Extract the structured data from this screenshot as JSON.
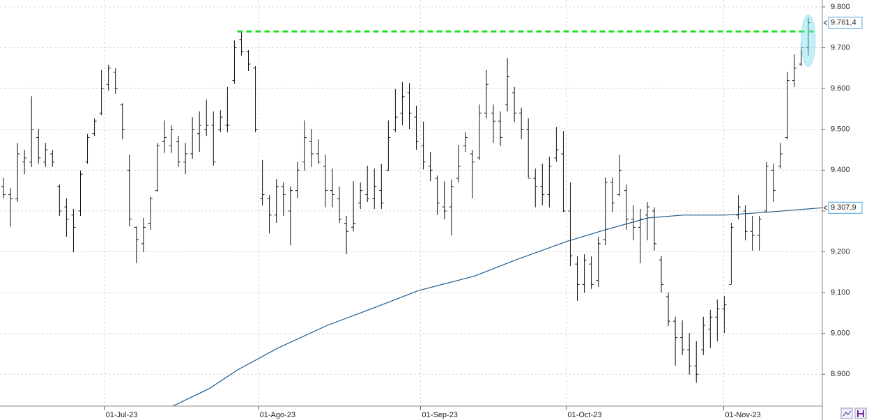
{
  "chart_data": {
    "type": "ohlc",
    "open": [
      9360,
      9340,
      9330,
      9420,
      9420,
      9480,
      9420,
      9440,
      9360,
      9310,
      9290,
      9300,
      9420,
      9490,
      9540,
      9610,
      9640,
      9560,
      9400,
      9260,
      9220,
      9270,
      9350,
      9470,
      9460,
      9470,
      9420,
      9440,
      9490,
      9500,
      9510,
      9500,
      9510,
      9620,
      9720,
      9690,
      9650,
      9330,
      9330,
      9290,
      9360,
      9300,
      9350,
      9420,
      9470,
      9440,
      9410,
      9350,
      9330,
      9270,
      9260,
      9320,
      9340,
      9330,
      9350,
      9400,
      9500,
      9540,
      9590,
      9530,
      9460,
      9410,
      9380,
      9310,
      9310,
      9380,
      9460,
      9440,
      9430,
      9540,
      9540,
      9520,
      9560,
      9590,
      9540,
      9500,
      9380,
      9360,
      9340,
      9430,
      9440,
      9300,
      9170,
      9120,
      9170,
      9130,
      9230,
      9370,
      9340,
      9350,
      9280,
      9260,
      9290,
      9300,
      9180,
      9090,
      9030,
      8990,
      8960,
      8920,
      8960,
      9010,
      9040,
      9060,
      9120,
      9290,
      9300,
      9250,
      9240,
      9300,
      9400,
      9410,
      9480,
      9620,
      9660,
      9700
    ],
    "high": [
      9382,
      9356,
      9467,
      9450,
      9581,
      9501,
      9467,
      9450,
      9365,
      9331,
      9305,
      9399,
      9489,
      9527,
      9646,
      9658,
      9650,
      9564,
      9438,
      9262,
      9283,
      9336,
      9467,
      9522,
      9510,
      9484,
      9467,
      9530,
      9544,
      9573,
      9544,
      9547,
      9604,
      9718,
      9740,
      9694,
      9655,
      9425,
      9339,
      9378,
      9370,
      9360,
      9421,
      9522,
      9501,
      9476,
      9438,
      9404,
      9360,
      9288,
      9373,
      9370,
      9411,
      9404,
      9416,
      9522,
      9599,
      9616,
      9613,
      9558,
      9519,
      9445,
      9387,
      9373,
      9377,
      9462,
      9493,
      9450,
      9561,
      9646,
      9561,
      9544,
      9675,
      9604,
      9553,
      9527,
      9404,
      9416,
      9433,
      9506,
      9496,
      9370,
      9189,
      9194,
      9189,
      9237,
      9382,
      9382,
      9438,
      9365,
      9314,
      9305,
      9322,
      9309,
      9189,
      9100,
      9041,
      9032,
      9001,
      8981,
      9041,
      9058,
      9083,
      9092,
      9271,
      9339,
      9314,
      9288,
      9288,
      9421,
      9416,
      9467,
      9641,
      9684,
      9715,
      9774
    ],
    "low": [
      9331,
      9262,
      9322,
      9390,
      9408,
      9416,
      9408,
      9408,
      9288,
      9237,
      9199,
      9288,
      9416,
      9484,
      9535,
      9595,
      9587,
      9476,
      9262,
      9172,
      9199,
      9254,
      9348,
      9442,
      9442,
      9408,
      9390,
      9428,
      9445,
      9484,
      9411,
      9493,
      9493,
      9612,
      9681,
      9643,
      9493,
      9314,
      9245,
      9271,
      9288,
      9216,
      9331,
      9399,
      9408,
      9416,
      9309,
      9309,
      9271,
      9194,
      9250,
      9305,
      9322,
      9305,
      9305,
      9399,
      9493,
      9510,
      9501,
      9450,
      9402,
      9373,
      9291,
      9280,
      9240,
      9370,
      9445,
      9331,
      9425,
      9527,
      9467,
      9459,
      9544,
      9518,
      9476,
      9382,
      9309,
      9314,
      9309,
      9421,
      9297,
      9165,
      9080,
      9100,
      9109,
      9114,
      9216,
      9297,
      9336,
      9254,
      9228,
      9172,
      9228,
      9203,
      9100,
      9018,
      8921,
      8947,
      8899,
      8879,
      8947,
      8964,
      8981,
      9001,
      9121,
      9280,
      9228,
      9203,
      9203,
      9297,
      9322,
      9404,
      9476,
      9604,
      9655,
      9681
    ],
    "close": [
      9340,
      9330,
      9440,
      9430,
      9500,
      9430,
      9450,
      9420,
      9300,
      9280,
      9260,
      9390,
      9480,
      9520,
      9600,
      9650,
      9600,
      9500,
      9280,
      9230,
      9260,
      9330,
      9460,
      9480,
      9500,
      9420,
      9440,
      9500,
      9510,
      9510,
      9420,
      9530,
      9510,
      9700,
      9690,
      9660,
      9500,
      9340,
      9290,
      9360,
      9340,
      9350,
      9400,
      9480,
      9440,
      9420,
      9350,
      9340,
      9280,
      9250,
      9270,
      9350,
      9330,
      9360,
      9320,
      9480,
      9530,
      9580,
      9540,
      9470,
      9420,
      9400,
      9320,
      9300,
      9360,
      9410,
      9480,
      9420,
      9540,
      9610,
      9520,
      9480,
      9630,
      9540,
      9500,
      9380,
      9360,
      9340,
      9410,
      9450,
      9300,
      9190,
      9120,
      9180,
      9120,
      9220,
      9370,
      9320,
      9400,
      9280,
      9260,
      9280,
      9310,
      9220,
      9120,
      9030,
      8990,
      8960,
      8920,
      8900,
      9020,
      9040,
      9060,
      9070,
      9260,
      9310,
      9250,
      9240,
      9280,
      9410,
      9350,
      9440,
      9620,
      9650,
      9700,
      9761.4
    ],
    "color": "#111111",
    "ma": {
      "color": "#1f5a8a",
      "x": [
        24.2,
        29.4,
        33.4,
        39.3,
        46.3,
        53.3,
        59.3,
        67.2,
        73.2,
        80.4,
        86.2,
        92.1,
        97.1,
        103.1,
        109.1,
        117
      ],
      "values": [
        8822,
        8865,
        8910,
        8965,
        9020,
        9065,
        9105,
        9140,
        9180,
        9225,
        9255,
        9283,
        9290,
        9290,
        9297,
        9307.9
      ]
    },
    "last_price": {
      "value": 9761.4,
      "label": "9.761,4"
    },
    "ma_last": {
      "value": 9307.9,
      "label": "9.307,9"
    },
    "level": {
      "value": 9740,
      "x": [
        33.4,
        116
      ],
      "color": "#22dd22"
    },
    "xlim": [
      -0.5,
      117
    ],
    "xticks": [
      {
        "value": 14.4,
        "label": "01-Jul-23"
      },
      {
        "value": 36.4,
        "label": "01-Ago-23"
      },
      {
        "value": 59.6,
        "label": "01-Sep-23"
      },
      {
        "value": 80.4,
        "label": "01-Oct-23"
      },
      {
        "value": 102.9,
        "label": "01-Nov-23"
      }
    ],
    "ylim": [
      8822,
      9817
    ],
    "yticks": [
      {
        "value": 8900,
        "label": "8.900"
      },
      {
        "value": 9000,
        "label": "9.000"
      },
      {
        "value": 9100,
        "label": "9.100"
      },
      {
        "value": 9200,
        "label": "9.200"
      },
      {
        "value": 9300,
        "label": "9.300"
      },
      {
        "value": 9400,
        "label": "9.400"
      },
      {
        "value": 9500,
        "label": "9.500"
      },
      {
        "value": 9600,
        "label": "9.600"
      },
      {
        "value": 9700,
        "label": "9.700"
      },
      {
        "value": 9800,
        "label": "9.800"
      }
    ],
    "grid": true
  }
}
